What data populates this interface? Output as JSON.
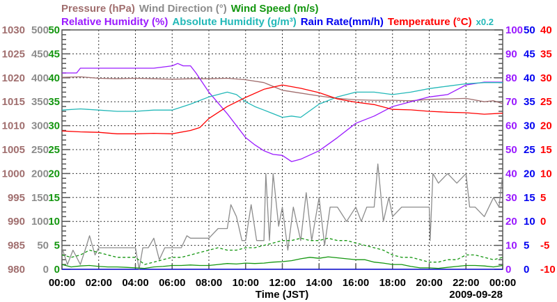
{
  "chart_data": {
    "type": "line",
    "legend": [
      {
        "label": "Pressure (hPa)",
        "color": "#a06e6e",
        "row": 1
      },
      {
        "label": "Wind Direction (°)",
        "color": "#8c8c8c",
        "row": 1
      },
      {
        "label": "Wind Speed (m/s)",
        "color": "#13960f",
        "row": 1
      },
      {
        "label": "Relative Humidity (%)",
        "color": "#9a1aff",
        "row": 2
      },
      {
        "label": "Absolute Humidity (g/m³)",
        "color": "#22b8b8",
        "row": 2
      },
      {
        "label": "Rain Rate(mm/h)",
        "color": "#0000f0",
        "row": 2
      },
      {
        "label": "Temperature (°C)",
        "color": "#ff0000",
        "row": 2
      },
      {
        "label": "x0.2",
        "color": "#22b8b8",
        "row": 2
      }
    ],
    "xlabel": "Time (JST)",
    "date": "2009-09-28",
    "x_ticks": [
      "00:00",
      "02:00",
      "04:00",
      "06:00",
      "08:00",
      "10:00",
      "12:00",
      "14:00",
      "16:00",
      "18:00",
      "20:00",
      "22:00",
      "00:00"
    ],
    "xlim_hours": [
      0,
      24
    ],
    "grid": true,
    "axes": {
      "pressure": {
        "ticks": [
          "980",
          "985",
          "990",
          "995",
          "1000",
          "1005",
          "1010",
          "1015",
          "1020",
          "1025",
          "1030"
        ],
        "ylim": [
          980,
          1030
        ],
        "color": "#a06e6e",
        "side": "left"
      },
      "wind_direction": {
        "ticks": [
          "0",
          "50",
          "100",
          "150",
          "200",
          "250",
          "300",
          "350",
          "400",
          "450",
          "500"
        ],
        "ylim": [
          0,
          500
        ],
        "color": "#8c8c8c",
        "side": "left"
      },
      "wind_speed": {
        "ticks": [
          "0",
          "5",
          "10",
          "15",
          "20",
          "25",
          "30",
          "35",
          "40",
          "45",
          "50"
        ],
        "ylim": [
          0,
          50
        ],
        "color": "#13960f",
        "side": "left"
      },
      "relative_humidity": {
        "ticks": [
          "0",
          "10",
          "20",
          "30",
          "40",
          "50",
          "60",
          "70",
          "80",
          "90",
          "100"
        ],
        "ylim": [
          0,
          100
        ],
        "color": "#9a1aff",
        "side": "right"
      },
      "rain_rate": {
        "ticks": [
          "0",
          "5",
          "10",
          "15",
          "20",
          "25",
          "30",
          "35",
          "40",
          "45",
          "50"
        ],
        "ylim": [
          0,
          50
        ],
        "color": "#0000f0",
        "side": "right"
      },
      "temperature": {
        "ticks": [
          "-10",
          "-5",
          "0",
          "5",
          "10",
          "15",
          "20",
          "25",
          "30",
          "35",
          "40"
        ],
        "ylim": [
          -10,
          40
        ],
        "color": "#ff0000",
        "side": "right"
      }
    },
    "series": [
      {
        "name": "Pressure (hPa)",
        "axis": "pressure",
        "color": "#a06e6e",
        "x": [
          0,
          1,
          2,
          3,
          4,
          5,
          6,
          7,
          8,
          9,
          10,
          11,
          12,
          13,
          14,
          15,
          16,
          17,
          18,
          19,
          20,
          21,
          22,
          23,
          23.5,
          24
        ],
        "values": [
          1020.1,
          1020.2,
          1019.9,
          1019.8,
          1019.9,
          1019.8,
          1019.7,
          1019.8,
          1019.8,
          1019.9,
          1019.6,
          1019.0,
          1017.4,
          1016.8,
          1016.2,
          1015.7,
          1015.4,
          1015.3,
          1015.3,
          1015.2,
          1015.5,
          1015.6,
          1015.7,
          1015.0,
          1015.2,
          1014.6
        ]
      },
      {
        "name": "Relative Humidity (%)",
        "axis": "relative_humidity",
        "color": "#9a1aff",
        "x": [
          0,
          0.8,
          1,
          2,
          3,
          4,
          5,
          6,
          6.3,
          6.6,
          7,
          7.3,
          8,
          9,
          10,
          10.5,
          11,
          11.5,
          12,
          12.5,
          13,
          14,
          15,
          16,
          17,
          18,
          19,
          20,
          21,
          22,
          23,
          23.5,
          24
        ],
        "values": [
          82,
          82,
          84,
          84,
          84,
          84,
          84,
          85,
          86,
          85,
          85,
          82,
          74,
          65,
          55,
          52,
          49.5,
          48,
          47.6,
          45,
          46,
          49.5,
          55,
          61,
          64,
          68,
          70,
          72,
          73,
          77,
          78.2,
          78.2,
          78.2
        ]
      },
      {
        "name": "Absolute Humidity (g/m³) x0.2",
        "axis": "relative_humidity",
        "scale": 0.2,
        "color": "#22b8b8",
        "x": [
          0,
          1,
          2,
          3,
          4,
          5,
          6,
          7,
          8,
          9,
          9.5,
          10,
          10.5,
          11,
          11.5,
          12,
          12.5,
          13,
          14,
          15,
          16,
          17,
          18,
          19,
          20,
          21,
          22,
          23,
          24
        ],
        "values": [
          13.3,
          13.4,
          13.3,
          13.2,
          13.2,
          13.3,
          13.3,
          13.8,
          14.4,
          14.8,
          14.6,
          14.0,
          13.6,
          13.3,
          13.0,
          12.7,
          12.8,
          12.7,
          13.8,
          14.4,
          14.8,
          14.8,
          14.6,
          14.8,
          15.1,
          15.3,
          15.5,
          15.6,
          15.6
        ]
      },
      {
        "name": "Rain Rate(mm/h)",
        "axis": "rain_rate",
        "color": "#0000f0",
        "x": [
          0,
          24
        ],
        "values": [
          0,
          0
        ]
      },
      {
        "name": "Temperature (°C)",
        "axis": "temperature",
        "color": "#ff0000",
        "x": [
          0,
          1,
          2,
          3,
          4,
          5,
          6,
          7,
          7.5,
          8,
          9,
          10,
          11,
          12,
          13,
          14,
          15,
          16,
          17,
          18,
          19,
          20,
          21,
          22,
          23,
          24
        ],
        "values": [
          18.9,
          18.7,
          18.6,
          18.3,
          18.3,
          18.4,
          18.3,
          19.0,
          19.6,
          21.5,
          24.0,
          25.9,
          27.6,
          28.5,
          27.8,
          26.9,
          25.6,
          24.9,
          24.4,
          23.4,
          23.3,
          23.0,
          22.8,
          22.7,
          22.4,
          22.6
        ]
      },
      {
        "name": "Wind Direction (°)",
        "axis": "wind_direction",
        "color": "#8c8c8c",
        "x": [
          0,
          0.3,
          0.6,
          1,
          1.3,
          1.5,
          1.8,
          2,
          3,
          3.5,
          4,
          4.2,
          4.4,
          4.7,
          5,
          5.3,
          5.6,
          6,
          6.5,
          6.8,
          7,
          7.5,
          8,
          8.5,
          9,
          9.2,
          9.5,
          9.8,
          10,
          10.3,
          10.6,
          11,
          11.1,
          11.3,
          11.5,
          11.8,
          12,
          12.3,
          12.6,
          13,
          13.3,
          13.6,
          14,
          14.3,
          14.6,
          15,
          15.5,
          16,
          16.3,
          16.6,
          17,
          17.2,
          17.5,
          17.8,
          18,
          18.5,
          19,
          19.5,
          20,
          20.05,
          20.2,
          20.5,
          21,
          21.5,
          22,
          22.2,
          22.5,
          23,
          23.5,
          23.8,
          24
        ],
        "values": [
          45,
          10,
          40,
          10,
          45,
          70,
          30,
          45,
          45,
          45,
          45,
          0,
          45,
          45,
          65,
          20,
          45,
          45,
          45,
          70,
          65,
          65,
          65,
          85,
          85,
          135,
          110,
          60,
          60,
          135,
          60,
          60,
          200,
          60,
          200,
          90,
          130,
          40,
          130,
          60,
          160,
          60,
          150,
          50,
          130,
          130,
          100,
          130,
          100,
          130,
          130,
          220,
          100,
          150,
          110,
          130,
          130,
          130,
          130,
          60,
          200,
          180,
          200,
          180,
          200,
          130,
          130,
          110,
          150,
          130,
          200
        ]
      },
      {
        "name": "Wind Speed (m/s)",
        "axis": "wind_speed",
        "color": "#13960f",
        "style": "solid",
        "x_step_hours": 0.5,
        "values": [
          1,
          0.5,
          0.7,
          0.8,
          0.6,
          0.5,
          0.5,
          0.4,
          0.3,
          0.2,
          0.5,
          0.6,
          0.8,
          0.8,
          0.9,
          0.8,
          0.8,
          1,
          1.2,
          1.1,
          1.3,
          1.2,
          1.3,
          1.5,
          1.6,
          1.8,
          2.2,
          2.5,
          2.3,
          2.6,
          2.4,
          2.2,
          2.0,
          2.0,
          1.5,
          1.3,
          1.0,
          1.0,
          0.6,
          0.3,
          0.3,
          0.2,
          0.4,
          0.6,
          0.8,
          0.8,
          0.7,
          0.5,
          0.8
        ]
      },
      {
        "name": "Wind Speed gust (m/s)",
        "axis": "wind_speed",
        "color": "#13960f",
        "style": "dashed",
        "x_step_hours": 0.5,
        "values": [
          3,
          2.5,
          3,
          4,
          3.5,
          3,
          2.5,
          2.5,
          2.5,
          1,
          1.5,
          2,
          2.5,
          2.5,
          3,
          3.5,
          4,
          4.5,
          4,
          4,
          4.5,
          4.5,
          5,
          5.5,
          6,
          6,
          6.5,
          6,
          6,
          6.5,
          6,
          6,
          5.5,
          5,
          4.5,
          4,
          3,
          2.5,
          2.5,
          2,
          1.5,
          1.5,
          2,
          2,
          3,
          3,
          2.5,
          2,
          2.5
        ]
      }
    ]
  }
}
